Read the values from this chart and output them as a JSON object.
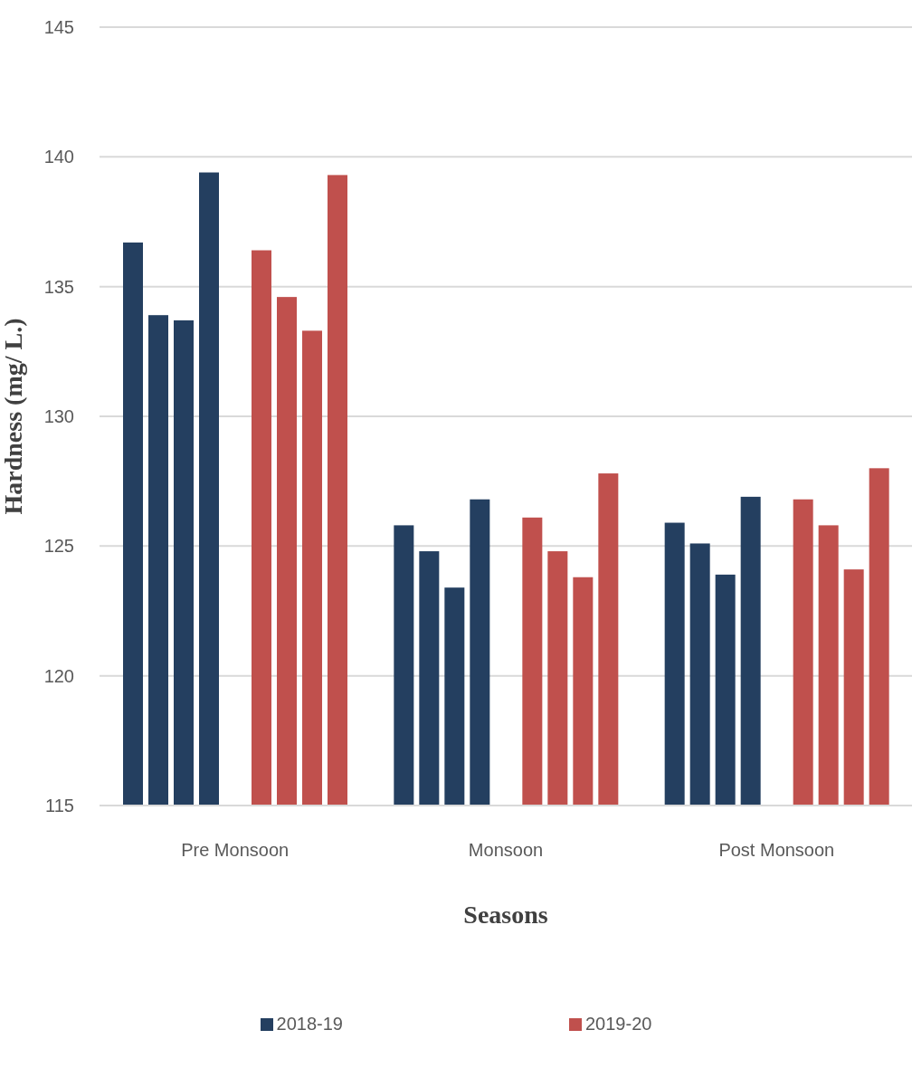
{
  "chart_data": {
    "type": "bar",
    "xlabel": "Seasons",
    "ylabel": "Hardness (mg/ L.)",
    "categories": [
      "Pre Monsoon",
      "Monsoon",
      "Post Monsoon"
    ],
    "series": [
      {
        "name": "2018-19",
        "color": "#243f60",
        "values": [
          136.7,
          125.8,
          125.9
        ]
      },
      {
        "color": "#243f60",
        "values": [
          133.9,
          124.8,
          125.1
        ]
      },
      {
        "color": "#243f60",
        "values": [
          133.7,
          123.4,
          123.9
        ]
      },
      {
        "color": "#243f60",
        "values": [
          139.4,
          126.8,
          126.9
        ]
      },
      {
        "name": "2019-20",
        "color": "#c0504d",
        "values": [
          136.4,
          126.1,
          126.8
        ]
      },
      {
        "color": "#c0504d",
        "values": [
          134.6,
          124.8,
          125.8
        ]
      },
      {
        "color": "#c0504d",
        "values": [
          133.3,
          123.8,
          124.1
        ]
      },
      {
        "color": "#c0504d",
        "values": [
          139.3,
          127.8,
          128.0
        ]
      }
    ],
    "ylim": [
      115,
      145
    ],
    "yticks": [
      115,
      120,
      125,
      130,
      135,
      140,
      145
    ],
    "grid": "y",
    "legend": "bottom"
  }
}
